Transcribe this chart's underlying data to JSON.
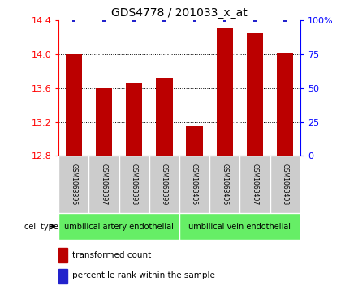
{
  "title": "GDS4778 / 201033_x_at",
  "samples": [
    "GSM1063396",
    "GSM1063397",
    "GSM1063398",
    "GSM1063399",
    "GSM1063405",
    "GSM1063406",
    "GSM1063407",
    "GSM1063408"
  ],
  "bar_values": [
    14.0,
    13.6,
    13.67,
    13.72,
    13.15,
    14.32,
    14.25,
    14.02
  ],
  "percentile_values": [
    100,
    100,
    100,
    100,
    100,
    100,
    100,
    100
  ],
  "bar_color": "#bb0000",
  "dot_color": "#2222cc",
  "ylim_left": [
    12.8,
    14.4
  ],
  "ylim_right": [
    0,
    100
  ],
  "yticks_left": [
    12.8,
    13.2,
    13.6,
    14.0,
    14.4
  ],
  "yticks_right": [
    0,
    25,
    50,
    75,
    100
  ],
  "ytick_labels_right": [
    "0",
    "25",
    "50",
    "75",
    "100%"
  ],
  "group1_label": "umbilical artery endothelial",
  "group2_label": "umbilical vein endothelial",
  "group1_indices": [
    0,
    1,
    2,
    3
  ],
  "group2_indices": [
    4,
    5,
    6,
    7
  ],
  "cell_type_label": "cell type",
  "legend_items": [
    "transformed count",
    "percentile rank within the sample"
  ],
  "background_color": "#ffffff",
  "group_box_color": "#66ee66",
  "sample_box_color": "#cccccc",
  "bar_width": 0.55
}
